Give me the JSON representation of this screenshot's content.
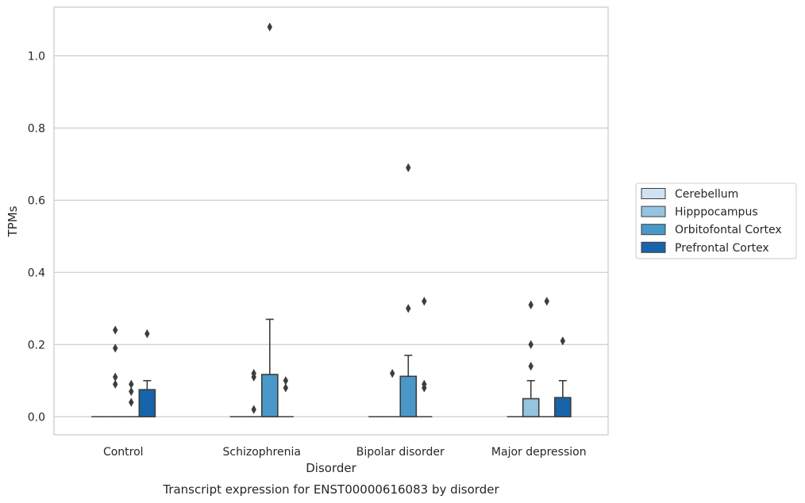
{
  "chart_data": {
    "type": "box",
    "caption": "Transcript expression for ENST00000616083 by disorder",
    "xlabel": "Disorder",
    "ylabel": "TPMs",
    "ylim": [
      -0.05,
      1.135
    ],
    "yticks": [
      "0.0",
      "0.2",
      "0.4",
      "0.6",
      "0.8",
      "1.0"
    ],
    "ytick_values": [
      0.0,
      0.2,
      0.4,
      0.6,
      0.8,
      1.0
    ],
    "grid": true,
    "legend_position": "right",
    "categories": [
      "Control",
      "Schizophrenia",
      "Bipolar disorder",
      "Major depression"
    ],
    "series": [
      {
        "name": "Cerebellum",
        "color": "#d0e1f2",
        "boxes": [
          {
            "q1": 0,
            "median": 0,
            "q3": 0,
            "whisker_low": 0,
            "whisker_high": 0,
            "outliers": []
          },
          {
            "q1": 0,
            "median": 0,
            "q3": 0,
            "whisker_low": 0,
            "whisker_high": 0,
            "outliers": []
          },
          {
            "q1": 0,
            "median": 0,
            "q3": 0,
            "whisker_low": 0,
            "whisker_high": 0,
            "outliers": []
          },
          {
            "q1": 0,
            "median": 0,
            "q3": 0,
            "whisker_low": 0,
            "whisker_high": 0,
            "outliers": []
          }
        ]
      },
      {
        "name": "Hipppocampus",
        "color": "#94c4df",
        "boxes": [
          {
            "q1": 0,
            "median": 0,
            "q3": 0,
            "whisker_low": 0,
            "whisker_high": 0,
            "outliers": [
              0.24,
              0.19,
              0.11,
              0.09
            ]
          },
          {
            "q1": 0,
            "median": 0,
            "q3": 0,
            "whisker_low": 0,
            "whisker_high": 0,
            "outliers": [
              0.12,
              0.11,
              0.02
            ]
          },
          {
            "q1": 0,
            "median": 0,
            "q3": 0,
            "whisker_low": 0,
            "whisker_high": 0,
            "outliers": [
              0.12
            ]
          },
          {
            "q1": 0,
            "median": 0,
            "q3": 0.05,
            "whisker_low": 0,
            "whisker_high": 0.1,
            "outliers": [
              0.31,
              0.2,
              0.14
            ]
          }
        ]
      },
      {
        "name": "Orbitofontal Cortex",
        "color": "#4a98c9",
        "boxes": [
          {
            "q1": 0,
            "median": 0,
            "q3": 0,
            "whisker_low": 0,
            "whisker_high": 0,
            "outliers": [
              0.09,
              0.07,
              0.04
            ]
          },
          {
            "q1": 0,
            "median": 0,
            "q3": 0.117,
            "whisker_low": 0,
            "whisker_high": 0.27,
            "outliers": [
              1.08
            ]
          },
          {
            "q1": 0,
            "median": 0,
            "q3": 0.112,
            "whisker_low": 0,
            "whisker_high": 0.17,
            "outliers": [
              0.69,
              0.3
            ]
          },
          {
            "q1": 0,
            "median": 0,
            "q3": 0,
            "whisker_low": 0,
            "whisker_high": 0,
            "outliers": [
              0.32
            ]
          }
        ]
      },
      {
        "name": "Prefrontal Cortex",
        "color": "#1764ab",
        "boxes": [
          {
            "q1": 0,
            "median": 0,
            "q3": 0.075,
            "whisker_low": 0,
            "whisker_high": 0.1,
            "outliers": [
              0.23
            ]
          },
          {
            "q1": 0,
            "median": 0,
            "q3": 0,
            "whisker_low": 0,
            "whisker_high": 0,
            "outliers": [
              0.1,
              0.08
            ]
          },
          {
            "q1": 0,
            "median": 0,
            "q3": 0,
            "whisker_low": 0,
            "whisker_high": 0,
            "outliers": [
              0.32,
              0.09,
              0.08
            ]
          },
          {
            "q1": 0,
            "median": 0,
            "q3": 0.053,
            "whisker_low": 0,
            "whisker_high": 0.1,
            "outliers": [
              0.21
            ]
          }
        ]
      }
    ]
  }
}
